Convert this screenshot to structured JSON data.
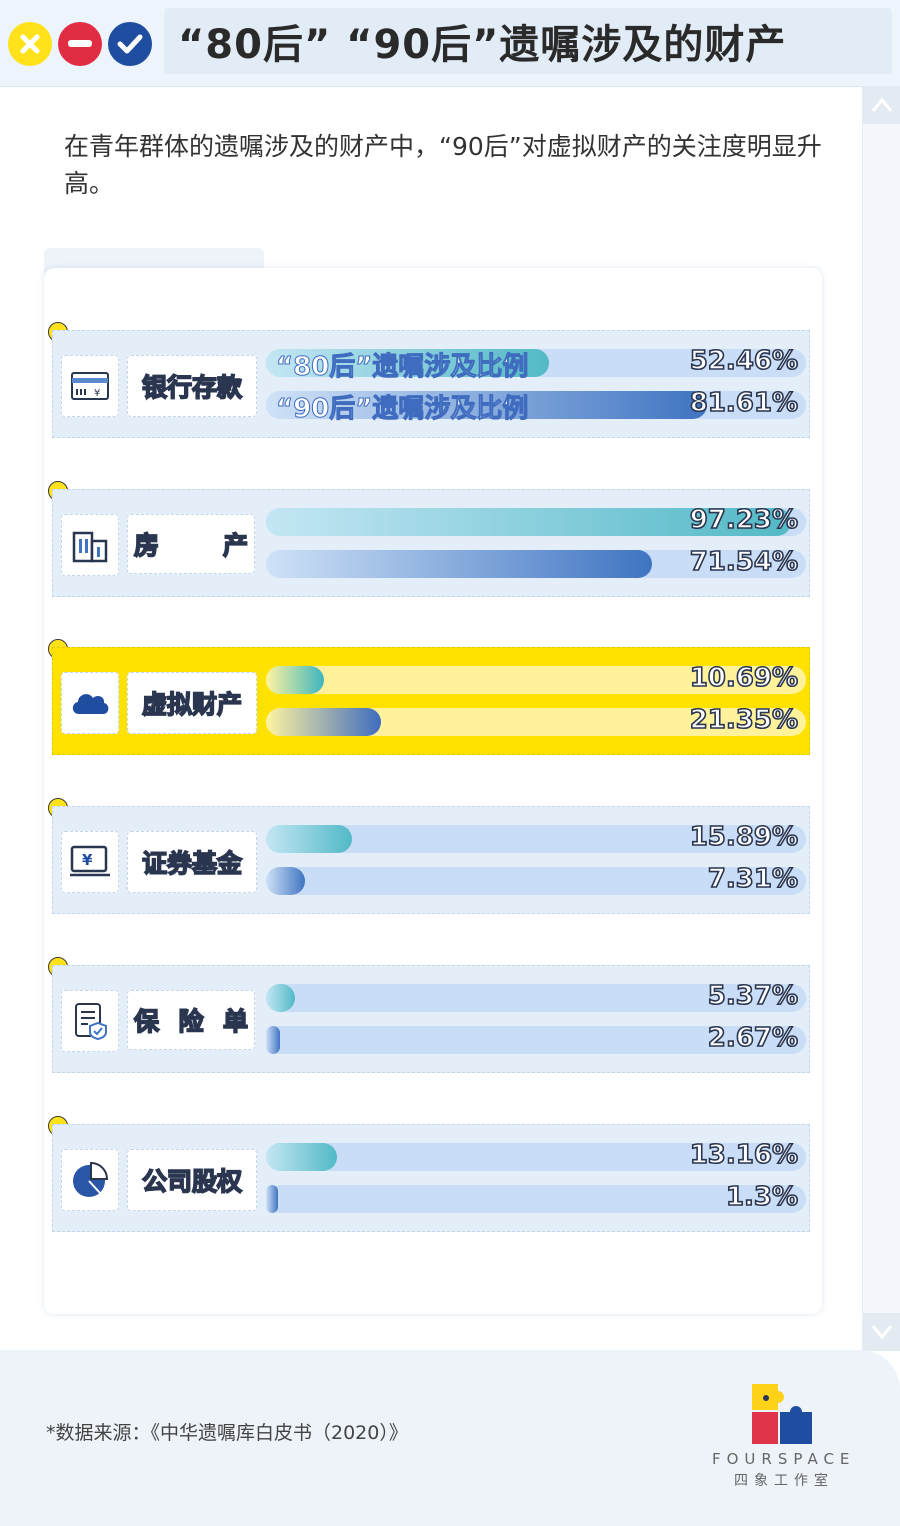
{
  "window": {
    "title": "“80后” “90后”遗嘱涉及的财产",
    "controls": [
      "close-icon",
      "minimize-icon",
      "confirm-icon"
    ]
  },
  "intro_text": "在青年群体的遗嘱涉及的财产中，“90后”对虚拟财产的关注度明显升高。",
  "colors": {
    "accent_yellow": "#ffe200",
    "series_80": "#52b9c6",
    "series_90": "#3f74c2",
    "panel": "#e4eef9"
  },
  "chart_data": {
    "type": "bar",
    "orientation": "horizontal",
    "categories": [
      "银行存款",
      "房产",
      "虚拟财产",
      "证券基金",
      "保险单",
      "公司股权"
    ],
    "category_display": [
      "银行存款",
      "房 产",
      "虚拟财产",
      "证券基金",
      "保险单",
      "公司股权"
    ],
    "category_icons": [
      "bank-card-icon",
      "building-icon",
      "cloud-icon",
      "securities-fund-icon",
      "insurance-document-icon",
      "pie-chart-icon"
    ],
    "highlighted_category": "虚拟财产",
    "series": [
      {
        "name": "“80后”遗嘱涉及比例",
        "values": [
          52.46,
          97.23,
          10.69,
          15.89,
          5.37,
          13.16
        ],
        "labels": [
          "52.46%",
          "97.23%",
          "10.69%",
          "15.89%",
          "5.37%",
          "13.16%"
        ]
      },
      {
        "name": "“90后”遗嘱涉及比例",
        "values": [
          81.61,
          71.54,
          21.35,
          7.31,
          2.67,
          1.3
        ],
        "labels": [
          "81.61%",
          "71.54%",
          "21.35%",
          "7.31%",
          "2.67%",
          "1.3%"
        ]
      }
    ],
    "xlim": [
      0,
      100
    ],
    "unit": "%"
  },
  "footer": {
    "source": "*数据来源：《中华遗嘱库白皮书（2020）》",
    "logo_text": "FOURSPACE",
    "logo_sub": "四象工作室"
  }
}
